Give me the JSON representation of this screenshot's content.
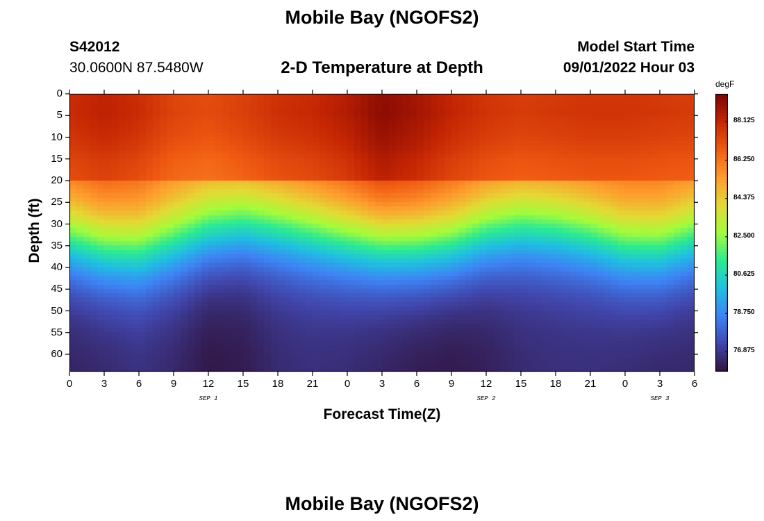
{
  "header": {
    "main_title": "Mobile Bay (NGOFS2)",
    "station_id": "S42012",
    "station_coords": "30.0600N  87.5480W",
    "plot_title": "2-D Temperature at Depth",
    "model_start_label": "Model Start Time",
    "model_start_value": "09/01/2022 Hour 03"
  },
  "footer": {
    "next_title": "Mobile Bay (NGOFS2)"
  },
  "chart_data": {
    "type": "heatmap",
    "title": "2-D Temperature at Depth",
    "xlabel": "Forecast Time(Z)",
    "ylabel": "Depth (ft)",
    "x_tick_labels": [
      "0",
      "3",
      "6",
      "9",
      "12",
      "15",
      "18",
      "21",
      "0",
      "3",
      "6",
      "9",
      "12",
      "15",
      "18",
      "21",
      "0",
      "3",
      "6"
    ],
    "x_range_hours": [
      0,
      54
    ],
    "x_day_labels": [
      {
        "label": "SEP 1",
        "hour": 12
      },
      {
        "label": "SEP 2",
        "hour": 36
      },
      {
        "label": "SEP 3",
        "hour": 51
      }
    ],
    "y_tick_labels": [
      "0",
      "5",
      "10",
      "15",
      "20",
      "25",
      "30",
      "35",
      "40",
      "45",
      "50",
      "55",
      "60"
    ],
    "y_range_ft": [
      0,
      64
    ],
    "y_inverted": true,
    "colorbar": {
      "unit": "degF",
      "range": [
        75.9,
        89.5
      ],
      "tick_labels": [
        "88.125",
        "86.250",
        "84.375",
        "82.500",
        "80.625",
        "78.750",
        "76.875"
      ],
      "tick_values": [
        88.125,
        86.25,
        84.375,
        82.5,
        80.625,
        78.75,
        76.875
      ],
      "colormap": [
        "#30123b",
        "#4146ac",
        "#3e83f5",
        "#1fc0e1",
        "#2bea93",
        "#a4fc3b",
        "#e3d934",
        "#fe9b2d",
        "#f05b12",
        "#c42503",
        "#7a0403"
      ]
    },
    "surface_temp_profile": [
      [
        0,
        88.0
      ],
      [
        3,
        88.3
      ],
      [
        6,
        88.0
      ],
      [
        9,
        87.4
      ],
      [
        12,
        87.2
      ],
      [
        15,
        87.5
      ],
      [
        18,
        87.9
      ],
      [
        21,
        88.1
      ],
      [
        24,
        88.5
      ],
      [
        27,
        89.2
      ],
      [
        30,
        88.8
      ],
      [
        33,
        88.2
      ],
      [
        36,
        87.8
      ],
      [
        39,
        87.6
      ],
      [
        42,
        87.7
      ],
      [
        45,
        87.8
      ],
      [
        48,
        87.8
      ],
      [
        51,
        87.7
      ],
      [
        54,
        87.6
      ]
    ],
    "thermocline_depth_ft": [
      [
        0,
        27
      ],
      [
        3,
        29
      ],
      [
        6,
        29.5
      ],
      [
        9,
        27.5
      ],
      [
        12,
        25
      ],
      [
        15,
        23.5
      ],
      [
        18,
        24
      ],
      [
        21,
        25.5
      ],
      [
        24,
        27
      ],
      [
        27,
        28
      ],
      [
        30,
        28.5
      ],
      [
        33,
        28
      ],
      [
        36,
        25.5
      ],
      [
        39,
        24
      ],
      [
        42,
        24.5
      ],
      [
        45,
        26
      ],
      [
        48,
        28.5
      ],
      [
        51,
        29
      ],
      [
        54,
        26.5
      ]
    ],
    "bottom_temp_profile": [
      [
        0,
        76.3
      ],
      [
        3,
        76.4
      ],
      [
        6,
        76.6
      ],
      [
        9,
        76.4
      ],
      [
        12,
        76.0
      ],
      [
        15,
        76.1
      ],
      [
        18,
        76.5
      ],
      [
        21,
        76.6
      ],
      [
        24,
        76.5
      ],
      [
        27,
        76.3
      ],
      [
        30,
        76.1
      ],
      [
        33,
        76.0
      ],
      [
        36,
        76.2
      ],
      [
        39,
        76.5
      ],
      [
        42,
        76.6
      ],
      [
        45,
        76.6
      ],
      [
        48,
        76.5
      ],
      [
        51,
        76.4
      ],
      [
        54,
        76.4
      ]
    ]
  }
}
